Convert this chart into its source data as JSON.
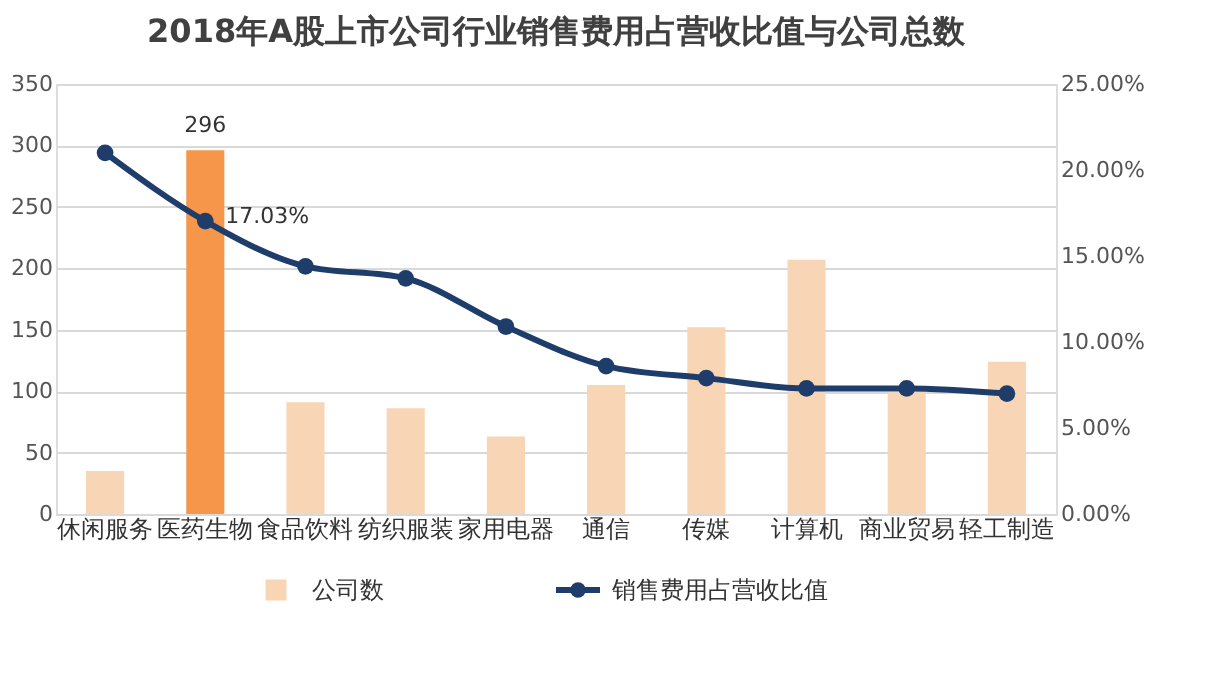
{
  "chart_data": {
    "type": "bar",
    "title": "2018年A股上市公司行业销售费用占营收比值与公司总数",
    "categories": [
      "休闲服务",
      "医药生物",
      "食品饮料",
      "纺织服装",
      "家用电器",
      "通信",
      "传媒",
      "计算机",
      "商业贸易",
      "轻工制造"
    ],
    "series": [
      {
        "name": "公司数",
        "color": "#f8d5b4",
        "colors": [
          "#f8d5b4",
          "#f5964a",
          "#f8d5b4",
          "#f8d5b4",
          "#f8d5b4",
          "#f8d5b4",
          "#f8d5b4",
          "#f8d5b4",
          "#f8d5b4",
          "#f8d5b4"
        ],
        "values": [
          35,
          296,
          91,
          86,
          63,
          105,
          152,
          207,
          99,
          124
        ],
        "value_labels": [
          null,
          "296",
          null,
          null,
          null,
          null,
          null,
          null,
          null,
          null
        ]
      },
      {
        "name": "销售费用占营收比值",
        "type": "line",
        "axis": "y2",
        "color": "#1f3d6b",
        "values": [
          21.0,
          17.03,
          14.4,
          13.7,
          10.9,
          8.6,
          7.9,
          7.3,
          7.3,
          7.0
        ],
        "value_labels": [
          null,
          "17.03%",
          null,
          null,
          null,
          null,
          null,
          null,
          null,
          null
        ]
      }
    ],
    "ylim": [
      0,
      350
    ],
    "yticks": [
      0,
      50,
      100,
      150,
      200,
      250,
      300,
      350
    ],
    "y2lim": [
      0,
      25
    ],
    "y2ticks": [
      {
        "value": 0,
        "label": "0.00%"
      },
      {
        "value": 5,
        "label": "5.00%"
      },
      {
        "value": 10,
        "label": "10.00%"
      },
      {
        "value": 15,
        "label": "15.00%"
      },
      {
        "value": 20,
        "label": "20.00%"
      },
      {
        "value": 25,
        "label": "25.00%"
      }
    ],
    "grid": "y",
    "legend": "bottom",
    "marker": "circle",
    "line_style": "solid"
  }
}
